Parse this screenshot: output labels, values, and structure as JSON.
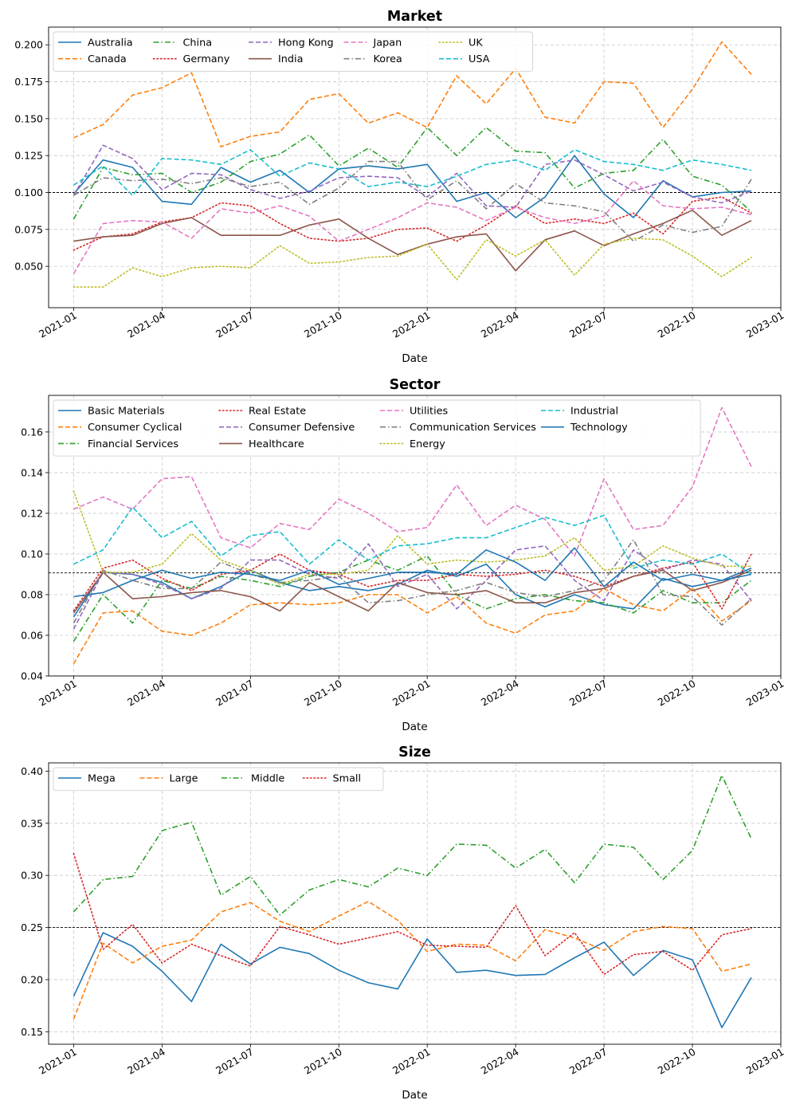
{
  "figure": {
    "xlabel": "Date"
  },
  "chart_data": [
    {
      "type": "line",
      "title": "Market",
      "xlabel": "Date",
      "ylabel": "",
      "ylim": [
        0.022,
        0.212
      ],
      "yticks": [
        0.05,
        0.075,
        0.1,
        0.125,
        0.15,
        0.175,
        0.2
      ],
      "ytick_labels": [
        "0.050",
        "0.075",
        "0.100",
        "0.125",
        "0.150",
        "0.175",
        "0.200"
      ],
      "reference_line": 0.1,
      "legend_ncol": 5,
      "x": [
        "2021-01",
        "2021-02",
        "2021-03",
        "2021-04",
        "2021-05",
        "2021-06",
        "2021-07",
        "2021-08",
        "2021-09",
        "2021-10",
        "2021-11",
        "2021-12",
        "2022-01",
        "2022-02",
        "2022-03",
        "2022-04",
        "2022-05",
        "2022-06",
        "2022-07",
        "2022-08",
        "2022-09",
        "2022-10",
        "2022-11",
        "2022-12"
      ],
      "xticks": [
        "2021-01",
        "2021-04",
        "2021-07",
        "2021-10",
        "2022-01",
        "2022-04",
        "2022-07",
        "2022-10",
        "2023-01"
      ],
      "series": [
        {
          "name": "Australia",
          "color": "#1f77b4",
          "dash": "solid",
          "values": [
            0.099,
            0.122,
            0.117,
            0.094,
            0.092,
            0.117,
            0.107,
            0.115,
            0.1,
            0.116,
            0.118,
            0.116,
            0.119,
            0.094,
            0.1,
            0.083,
            0.097,
            0.125,
            0.099,
            0.083,
            0.108,
            0.097,
            0.1,
            0.101
          ]
        },
        {
          "name": "Canada",
          "color": "#ff7f0e",
          "dash": "dashed",
          "values": [
            0.137,
            0.146,
            0.166,
            0.171,
            0.181,
            0.131,
            0.138,
            0.141,
            0.163,
            0.167,
            0.147,
            0.154,
            0.144,
            0.179,
            0.16,
            0.184,
            0.151,
            0.147,
            0.175,
            0.174,
            0.144,
            0.17,
            0.202,
            0.18
          ]
        },
        {
          "name": "China",
          "color": "#2ca02c",
          "dash": "dashdot",
          "values": [
            0.082,
            0.117,
            0.112,
            0.113,
            0.1,
            0.107,
            0.121,
            0.126,
            0.139,
            0.118,
            0.13,
            0.117,
            0.144,
            0.125,
            0.144,
            0.128,
            0.127,
            0.103,
            0.113,
            0.115,
            0.136,
            0.111,
            0.105,
            0.087
          ]
        },
        {
          "name": "Germany",
          "color": "#d62728",
          "dash": "dotted",
          "values": [
            0.061,
            0.07,
            0.072,
            0.08,
            0.083,
            0.093,
            0.091,
            0.079,
            0.069,
            0.067,
            0.069,
            0.075,
            0.076,
            0.067,
            0.078,
            0.091,
            0.079,
            0.082,
            0.079,
            0.086,
            0.072,
            0.094,
            0.097,
            0.086
          ]
        },
        {
          "name": "Hong Kong",
          "color": "#9467bd",
          "dash": "dashed",
          "values": [
            0.098,
            0.132,
            0.123,
            0.102,
            0.113,
            0.112,
            0.102,
            0.096,
            0.101,
            0.11,
            0.111,
            0.11,
            0.097,
            0.113,
            0.091,
            0.09,
            0.119,
            0.122,
            0.112,
            0.101,
            0.107,
            0.097,
            0.093,
            0.101
          ]
        },
        {
          "name": "India",
          "color": "#8c564b",
          "dash": "solid",
          "values": [
            0.067,
            0.07,
            0.071,
            0.079,
            0.083,
            0.071,
            0.071,
            0.071,
            0.078,
            0.082,
            0.069,
            0.058,
            0.065,
            0.07,
            0.072,
            0.047,
            0.068,
            0.074,
            0.064,
            0.072,
            0.079,
            0.088,
            0.071,
            0.081
          ]
        },
        {
          "name": "Japan",
          "color": "#e377c2",
          "dash": "dashed",
          "values": [
            0.045,
            0.079,
            0.081,
            0.08,
            0.069,
            0.089,
            0.086,
            0.091,
            0.084,
            0.067,
            0.075,
            0.083,
            0.093,
            0.09,
            0.081,
            0.09,
            0.083,
            0.079,
            0.084,
            0.108,
            0.091,
            0.089,
            0.09,
            0.085
          ]
        },
        {
          "name": "Korea",
          "color": "#7f7f7f",
          "dash": "dashdot",
          "values": [
            0.098,
            0.11,
            0.108,
            0.109,
            0.106,
            0.11,
            0.104,
            0.107,
            0.092,
            0.103,
            0.121,
            0.121,
            0.095,
            0.108,
            0.089,
            0.106,
            0.093,
            0.091,
            0.087,
            0.067,
            0.078,
            0.073,
            0.077,
            0.109
          ]
        },
        {
          "name": "UK",
          "color": "#bcbd22",
          "dash": "dotted",
          "values": [
            0.036,
            0.036,
            0.049,
            0.043,
            0.049,
            0.05,
            0.049,
            0.064,
            0.052,
            0.053,
            0.056,
            0.057,
            0.065,
            0.041,
            0.068,
            0.057,
            0.068,
            0.044,
            0.065,
            0.069,
            0.068,
            0.057,
            0.043,
            0.056
          ]
        },
        {
          "name": "USA",
          "color": "#17becf",
          "dash": "dashed",
          "values": [
            0.105,
            0.118,
            0.098,
            0.123,
            0.122,
            0.119,
            0.129,
            0.111,
            0.12,
            0.116,
            0.104,
            0.107,
            0.104,
            0.111,
            0.119,
            0.122,
            0.115,
            0.129,
            0.121,
            0.119,
            0.115,
            0.122,
            0.119,
            0.115
          ]
        }
      ]
    },
    {
      "type": "line",
      "title": "Sector",
      "xlabel": "Date",
      "ylabel": "",
      "ylim": [
        0.04,
        0.178
      ],
      "yticks": [
        0.04,
        0.06,
        0.08,
        0.1,
        0.12,
        0.14,
        0.16
      ],
      "ytick_labels": [
        "0.04",
        "0.06",
        "0.08",
        "0.10",
        "0.12",
        "0.14",
        "0.16"
      ],
      "reference_line": 0.0907,
      "legend_ncol": 4,
      "x": [
        "2021-01",
        "2021-02",
        "2021-03",
        "2021-04",
        "2021-05",
        "2021-06",
        "2021-07",
        "2021-08",
        "2021-09",
        "2021-10",
        "2021-11",
        "2021-12",
        "2022-01",
        "2022-02",
        "2022-03",
        "2022-04",
        "2022-05",
        "2022-06",
        "2022-07",
        "2022-08",
        "2022-09",
        "2022-10",
        "2022-11",
        "2022-12"
      ],
      "xticks": [
        "2021-01",
        "2021-04",
        "2021-07",
        "2021-10",
        "2022-01",
        "2022-04",
        "2022-07",
        "2022-10",
        "2023-01"
      ],
      "series": [
        {
          "name": "Basic Materials",
          "color": "#1f77b4",
          "dash": "solid",
          "values": [
            0.069,
            0.091,
            0.09,
            0.086,
            0.078,
            0.084,
            0.092,
            0.086,
            0.082,
            0.084,
            0.082,
            0.085,
            0.092,
            0.089,
            0.095,
            0.08,
            0.074,
            0.08,
            0.075,
            0.073,
            0.088,
            0.084,
            0.087,
            0.093
          ]
        },
        {
          "name": "Consumer Cyclical",
          "color": "#ff7f0e",
          "dash": "dashed",
          "values": [
            0.046,
            0.071,
            0.072,
            0.062,
            0.06,
            0.066,
            0.075,
            0.076,
            0.075,
            0.076,
            0.08,
            0.08,
            0.071,
            0.079,
            0.066,
            0.061,
            0.07,
            0.072,
            0.083,
            0.075,
            0.072,
            0.083,
            0.067,
            0.077
          ]
        },
        {
          "name": "Financial Services",
          "color": "#2ca02c",
          "dash": "dashdot",
          "values": [
            0.057,
            0.08,
            0.066,
            0.087,
            0.083,
            0.089,
            0.087,
            0.084,
            0.089,
            0.091,
            0.097,
            0.092,
            0.099,
            0.08,
            0.073,
            0.078,
            0.08,
            0.077,
            0.076,
            0.071,
            0.082,
            0.076,
            0.076,
            0.087
          ]
        },
        {
          "name": "Real Estate",
          "color": "#d62728",
          "dash": "dotted",
          "values": [
            0.072,
            0.093,
            0.097,
            0.088,
            0.082,
            0.09,
            0.092,
            0.1,
            0.092,
            0.09,
            0.084,
            0.087,
            0.087,
            0.09,
            0.089,
            0.09,
            0.092,
            0.089,
            0.084,
            0.089,
            0.093,
            0.096,
            0.073,
            0.1
          ]
        },
        {
          "name": "Consumer Defensive",
          "color": "#9467bd",
          "dash": "dashed",
          "values": [
            0.063,
            0.091,
            0.09,
            0.085,
            0.078,
            0.083,
            0.097,
            0.097,
            0.09,
            0.088,
            0.105,
            0.084,
            0.09,
            0.073,
            0.087,
            0.102,
            0.104,
            0.087,
            0.077,
            0.102,
            0.092,
            0.097,
            0.095,
            0.077
          ]
        },
        {
          "name": "Healthcare",
          "color": "#8c564b",
          "dash": "solid",
          "values": [
            0.071,
            0.091,
            0.078,
            0.079,
            0.081,
            0.082,
            0.079,
            0.072,
            0.086,
            0.079,
            0.072,
            0.086,
            0.081,
            0.08,
            0.082,
            0.076,
            0.076,
            0.081,
            0.083,
            0.089,
            0.092,
            0.082,
            0.086,
            0.092
          ]
        },
        {
          "name": "Utilities",
          "color": "#e377c2",
          "dash": "dashed",
          "values": [
            0.122,
            0.128,
            0.122,
            0.137,
            0.138,
            0.108,
            0.103,
            0.115,
            0.112,
            0.127,
            0.12,
            0.111,
            0.113,
            0.134,
            0.114,
            0.124,
            0.117,
            0.099,
            0.137,
            0.112,
            0.114,
            0.133,
            0.172,
            0.143
          ]
        },
        {
          "name": "Communication Services",
          "color": "#7f7f7f",
          "dash": "dashdot",
          "values": [
            0.066,
            0.092,
            0.087,
            0.083,
            0.083,
            0.096,
            0.09,
            0.086,
            0.087,
            0.089,
            0.076,
            0.077,
            0.08,
            0.082,
            0.086,
            0.081,
            0.079,
            0.082,
            0.087,
            0.107,
            0.08,
            0.079,
            0.065,
            0.078
          ]
        },
        {
          "name": "Energy",
          "color": "#bcbd22",
          "dash": "dotted",
          "values": [
            0.131,
            0.091,
            0.091,
            0.095,
            0.11,
            0.097,
            0.092,
            0.085,
            0.09,
            0.09,
            0.092,
            0.109,
            0.095,
            0.097,
            0.096,
            0.097,
            0.099,
            0.108,
            0.092,
            0.094,
            0.104,
            0.098,
            0.094,
            0.094
          ]
        },
        {
          "name": "Industrial",
          "color": "#17becf",
          "dash": "dashed",
          "values": [
            0.095,
            0.102,
            0.123,
            0.108,
            0.116,
            0.099,
            0.109,
            0.111,
            0.095,
            0.107,
            0.097,
            0.104,
            0.105,
            0.108,
            0.108,
            0.113,
            0.118,
            0.114,
            0.119,
            0.093,
            0.097,
            0.095,
            0.1,
            0.09
          ]
        },
        {
          "name": "Technology",
          "color": "#1f77b4",
          "dash": "solid",
          "values": [
            0.079,
            0.081,
            0.087,
            0.092,
            0.088,
            0.091,
            0.09,
            0.087,
            0.092,
            0.085,
            0.088,
            0.091,
            0.091,
            0.09,
            0.102,
            0.096,
            0.087,
            0.103,
            0.084,
            0.096,
            0.087,
            0.09,
            0.087,
            0.09
          ]
        }
      ]
    },
    {
      "type": "line",
      "title": "Size",
      "xlabel": "Date",
      "ylabel": "",
      "ylim": [
        0.138,
        0.408
      ],
      "yticks": [
        0.15,
        0.2,
        0.25,
        0.3,
        0.35,
        0.4
      ],
      "ytick_labels": [
        "0.15",
        "0.20",
        "0.25",
        "0.30",
        "0.35",
        "0.40"
      ],
      "reference_line": 0.25,
      "legend_ncol": 4,
      "x": [
        "2021-01",
        "2021-02",
        "2021-03",
        "2021-04",
        "2021-05",
        "2021-06",
        "2021-07",
        "2021-08",
        "2021-09",
        "2021-10",
        "2021-11",
        "2021-12",
        "2022-01",
        "2022-02",
        "2022-03",
        "2022-04",
        "2022-05",
        "2022-06",
        "2022-07",
        "2022-08",
        "2022-09",
        "2022-10",
        "2022-11",
        "2022-12"
      ],
      "xticks": [
        "2021-01",
        "2021-04",
        "2021-07",
        "2021-10",
        "2022-01",
        "2022-04",
        "2022-07",
        "2022-10",
        "2023-01"
      ],
      "series": [
        {
          "name": "Mega",
          "color": "#1f77b4",
          "dash": "solid",
          "values": [
            0.184,
            0.245,
            0.232,
            0.208,
            0.179,
            0.234,
            0.215,
            0.231,
            0.225,
            0.209,
            0.197,
            0.191,
            0.239,
            0.207,
            0.209,
            0.204,
            0.205,
            0.221,
            0.236,
            0.204,
            0.228,
            0.219,
            0.154,
            0.202
          ]
        },
        {
          "name": "Large",
          "color": "#ff7f0e",
          "dash": "dashed",
          "values": [
            0.162,
            0.235,
            0.216,
            0.232,
            0.238,
            0.265,
            0.274,
            0.256,
            0.246,
            0.261,
            0.275,
            0.257,
            0.227,
            0.234,
            0.233,
            0.218,
            0.248,
            0.24,
            0.228,
            0.246,
            0.251,
            0.249,
            0.208,
            0.215
          ]
        },
        {
          "name": "Middle",
          "color": "#2ca02c",
          "dash": "dashdot",
          "values": [
            0.265,
            0.296,
            0.299,
            0.343,
            0.351,
            0.281,
            0.299,
            0.262,
            0.286,
            0.296,
            0.289,
            0.307,
            0.3,
            0.33,
            0.329,
            0.307,
            0.325,
            0.293,
            0.33,
            0.327,
            0.296,
            0.324,
            0.396,
            0.335
          ]
        },
        {
          "name": "Small",
          "color": "#d62728",
          "dash": "dotted",
          "values": [
            0.321,
            0.229,
            0.253,
            0.216,
            0.234,
            0.223,
            0.213,
            0.251,
            0.243,
            0.234,
            0.24,
            0.246,
            0.233,
            0.232,
            0.231,
            0.271,
            0.223,
            0.245,
            0.205,
            0.224,
            0.227,
            0.209,
            0.243,
            0.249
          ]
        }
      ]
    }
  ]
}
